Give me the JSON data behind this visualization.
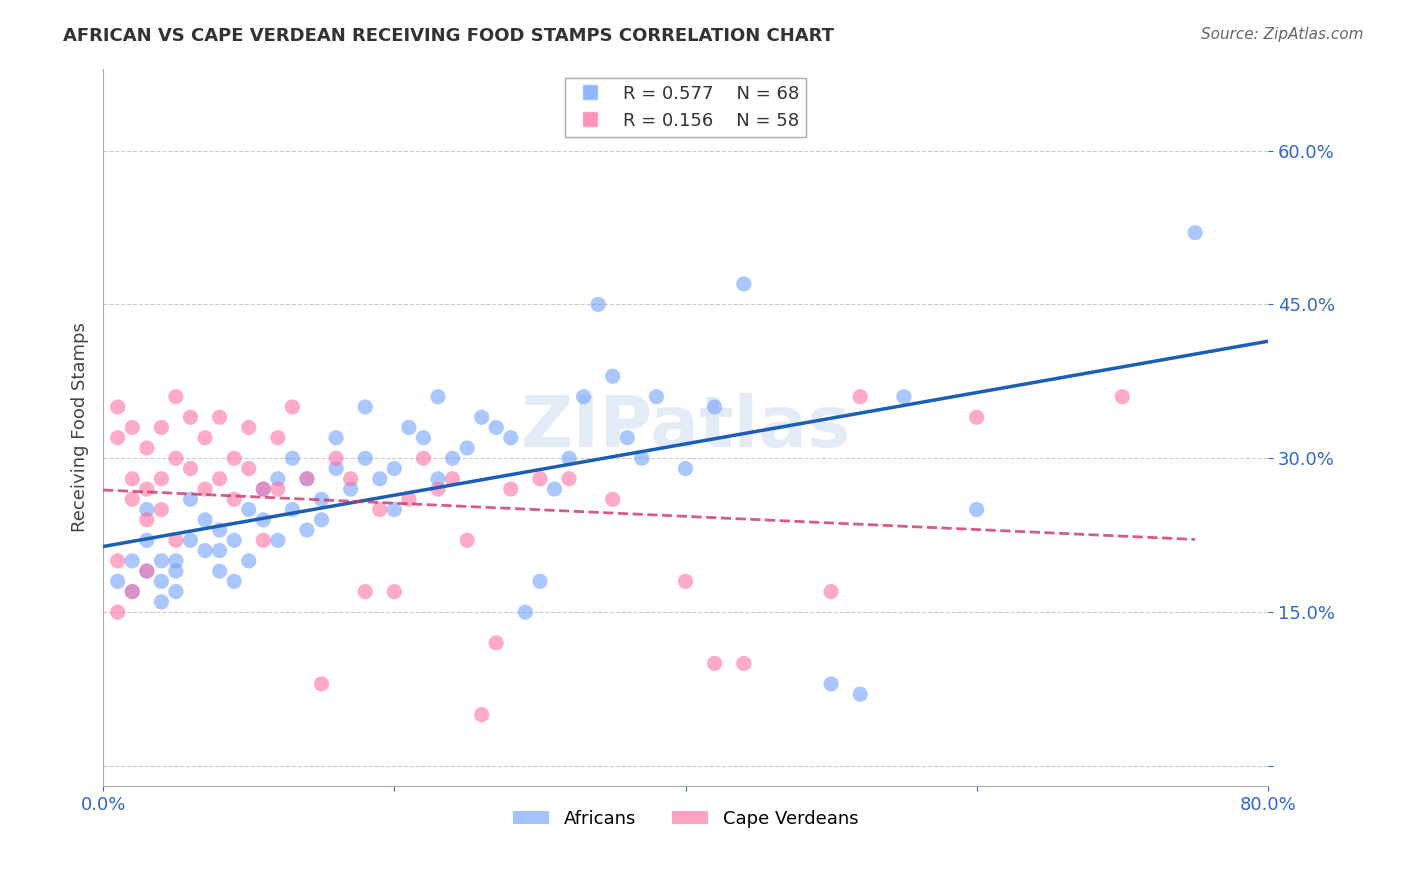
{
  "title": "AFRICAN VS CAPE VERDEAN RECEIVING FOOD STAMPS CORRELATION CHART",
  "source": "Source: ZipAtlas.com",
  "xlabel": "",
  "ylabel": "Receiving Food Stamps",
  "xlim": [
    0.0,
    0.8
  ],
  "ylim": [
    -0.02,
    0.68
  ],
  "xticks": [
    0.0,
    0.2,
    0.4,
    0.6,
    0.8
  ],
  "xticklabels": [
    "0.0%",
    "",
    "",
    "",
    "80.0%"
  ],
  "yticks": [
    0.0,
    0.15,
    0.3,
    0.45,
    0.6
  ],
  "yticklabels": [
    "",
    "15.0%",
    "30.0%",
    "45.0%",
    "60.0%"
  ],
  "legend_r_african": "R = 0.577",
  "legend_n_african": "N = 68",
  "legend_r_cv": "R = 0.156",
  "legend_n_cv": "N = 58",
  "african_color": "#6699ff",
  "cv_color": "#ff6699",
  "line_african_color": "#1a5fb4",
  "line_cv_color": "#cc3366",
  "tick_color": "#3366cc",
  "grid_color": "#cccccc",
  "watermark_text": "ZIPatlas",
  "africans_x": [
    0.01,
    0.02,
    0.02,
    0.03,
    0.03,
    0.03,
    0.04,
    0.04,
    0.04,
    0.05,
    0.05,
    0.05,
    0.06,
    0.06,
    0.07,
    0.07,
    0.08,
    0.08,
    0.08,
    0.09,
    0.09,
    0.1,
    0.1,
    0.11,
    0.11,
    0.12,
    0.12,
    0.13,
    0.13,
    0.14,
    0.14,
    0.15,
    0.15,
    0.16,
    0.16,
    0.17,
    0.18,
    0.18,
    0.19,
    0.2,
    0.2,
    0.21,
    0.22,
    0.23,
    0.23,
    0.24,
    0.25,
    0.26,
    0.27,
    0.28,
    0.29,
    0.3,
    0.31,
    0.32,
    0.33,
    0.34,
    0.35,
    0.36,
    0.37,
    0.38,
    0.4,
    0.42,
    0.44,
    0.5,
    0.52,
    0.55,
    0.6,
    0.75
  ],
  "africans_y": [
    0.18,
    0.17,
    0.2,
    0.19,
    0.22,
    0.25,
    0.18,
    0.16,
    0.2,
    0.17,
    0.19,
    0.2,
    0.22,
    0.26,
    0.21,
    0.24,
    0.19,
    0.21,
    0.23,
    0.18,
    0.22,
    0.25,
    0.2,
    0.24,
    0.27,
    0.22,
    0.28,
    0.25,
    0.3,
    0.23,
    0.28,
    0.24,
    0.26,
    0.29,
    0.32,
    0.27,
    0.3,
    0.35,
    0.28,
    0.25,
    0.29,
    0.33,
    0.32,
    0.28,
    0.36,
    0.3,
    0.31,
    0.34,
    0.33,
    0.32,
    0.15,
    0.18,
    0.27,
    0.3,
    0.36,
    0.45,
    0.38,
    0.32,
    0.3,
    0.36,
    0.29,
    0.35,
    0.47,
    0.08,
    0.07,
    0.36,
    0.25,
    0.52
  ],
  "cv_x": [
    0.01,
    0.01,
    0.01,
    0.01,
    0.02,
    0.02,
    0.02,
    0.02,
    0.03,
    0.03,
    0.03,
    0.03,
    0.04,
    0.04,
    0.04,
    0.05,
    0.05,
    0.05,
    0.06,
    0.06,
    0.07,
    0.07,
    0.08,
    0.08,
    0.09,
    0.09,
    0.1,
    0.1,
    0.11,
    0.11,
    0.12,
    0.12,
    0.13,
    0.14,
    0.15,
    0.16,
    0.17,
    0.18,
    0.19,
    0.2,
    0.21,
    0.22,
    0.23,
    0.24,
    0.25,
    0.26,
    0.27,
    0.28,
    0.3,
    0.32,
    0.35,
    0.4,
    0.42,
    0.44,
    0.5,
    0.52,
    0.6,
    0.7
  ],
  "cv_y": [
    0.2,
    0.32,
    0.35,
    0.15,
    0.28,
    0.33,
    0.26,
    0.17,
    0.31,
    0.27,
    0.24,
    0.19,
    0.33,
    0.28,
    0.25,
    0.36,
    0.3,
    0.22,
    0.34,
    0.29,
    0.32,
    0.27,
    0.28,
    0.34,
    0.26,
    0.3,
    0.29,
    0.33,
    0.27,
    0.22,
    0.32,
    0.27,
    0.35,
    0.28,
    0.08,
    0.3,
    0.28,
    0.17,
    0.25,
    0.17,
    0.26,
    0.3,
    0.27,
    0.28,
    0.22,
    0.05,
    0.12,
    0.27,
    0.28,
    0.28,
    0.26,
    0.18,
    0.1,
    0.1,
    0.17,
    0.36,
    0.34,
    0.36
  ]
}
